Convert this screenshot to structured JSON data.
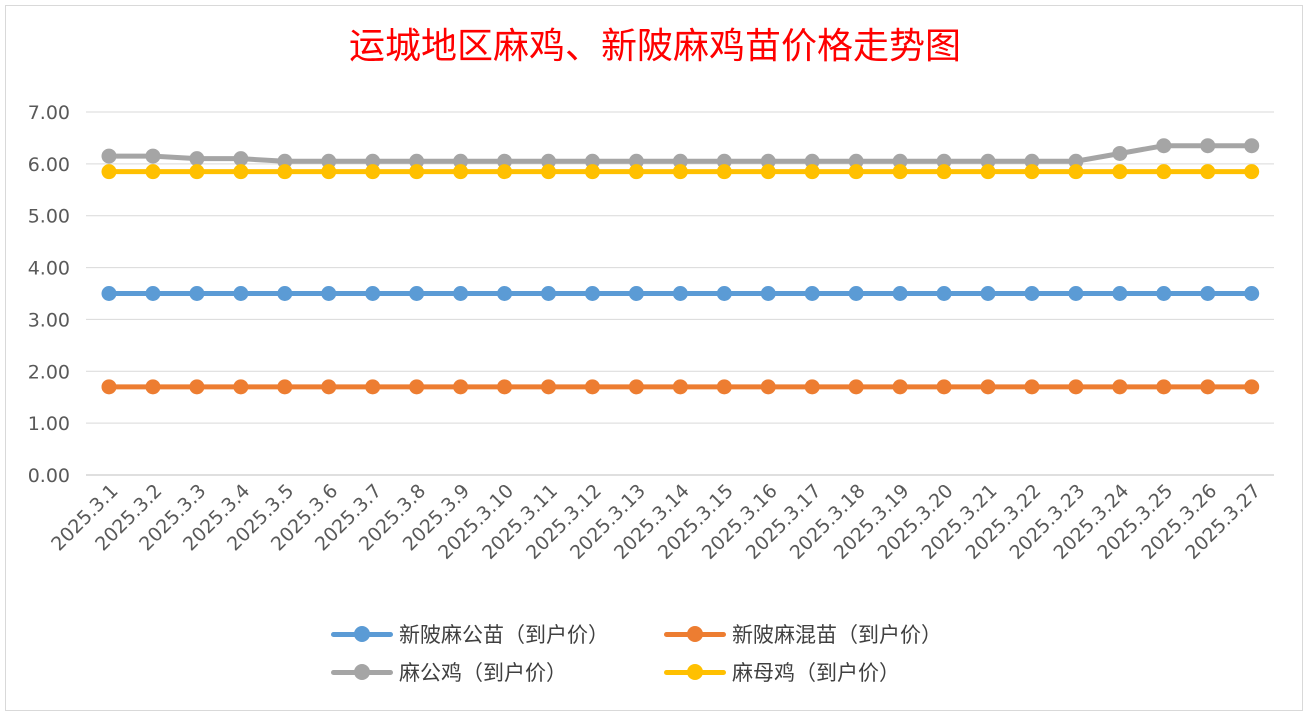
{
  "chart_data": {
    "type": "line",
    "title": "运城地区麻鸡、新陂麻鸡苗价格走势图",
    "xlabel": "",
    "ylabel": "",
    "ylim": [
      0,
      7
    ],
    "ytick_step": 1,
    "ytick_decimals": 2,
    "grid": true,
    "legend_position": "bottom",
    "categories": [
      "2025.3.1",
      "2025.3.2",
      "2025.3.3",
      "2025.3.4",
      "2025.3.5",
      "2025.3.6",
      "2025.3.7",
      "2025.3.8",
      "2025.3.9",
      "2025.3.10",
      "2025.3.11",
      "2025.3.12",
      "2025.3.13",
      "2025.3.14",
      "2025.3.15",
      "2025.3.16",
      "2025.3.17",
      "2025.3.18",
      "2025.3.19",
      "2025.3.20",
      "2025.3.21",
      "2025.3.22",
      "2025.3.23",
      "2025.3.24",
      "2025.3.25",
      "2025.3.26",
      "2025.3.27"
    ],
    "series": [
      {
        "name": "新陂麻公苗（到户价）",
        "color": "#5b9bd5",
        "values": [
          3.5,
          3.5,
          3.5,
          3.5,
          3.5,
          3.5,
          3.5,
          3.5,
          3.5,
          3.5,
          3.5,
          3.5,
          3.5,
          3.5,
          3.5,
          3.5,
          3.5,
          3.5,
          3.5,
          3.5,
          3.5,
          3.5,
          3.5,
          3.5,
          3.5,
          3.5,
          3.5
        ]
      },
      {
        "name": "新陂麻混苗（到户价）",
        "color": "#ed7d31",
        "values": [
          1.7,
          1.7,
          1.7,
          1.7,
          1.7,
          1.7,
          1.7,
          1.7,
          1.7,
          1.7,
          1.7,
          1.7,
          1.7,
          1.7,
          1.7,
          1.7,
          1.7,
          1.7,
          1.7,
          1.7,
          1.7,
          1.7,
          1.7,
          1.7,
          1.7,
          1.7,
          1.7
        ]
      },
      {
        "name": "麻公鸡（到户价）",
        "color": "#a5a5a5",
        "values": [
          6.15,
          6.15,
          6.1,
          6.1,
          6.05,
          6.05,
          6.05,
          6.05,
          6.05,
          6.05,
          6.05,
          6.05,
          6.05,
          6.05,
          6.05,
          6.05,
          6.05,
          6.05,
          6.05,
          6.05,
          6.05,
          6.05,
          6.05,
          6.2,
          6.35,
          6.35,
          6.35
        ]
      },
      {
        "name": "麻母鸡（到户价）",
        "color": "#ffc000",
        "values": [
          5.85,
          5.85,
          5.85,
          5.85,
          5.85,
          5.85,
          5.85,
          5.85,
          5.85,
          5.85,
          5.85,
          5.85,
          5.85,
          5.85,
          5.85,
          5.85,
          5.85,
          5.85,
          5.85,
          5.85,
          5.85,
          5.85,
          5.85,
          5.85,
          5.85,
          5.85,
          5.85
        ]
      }
    ]
  }
}
